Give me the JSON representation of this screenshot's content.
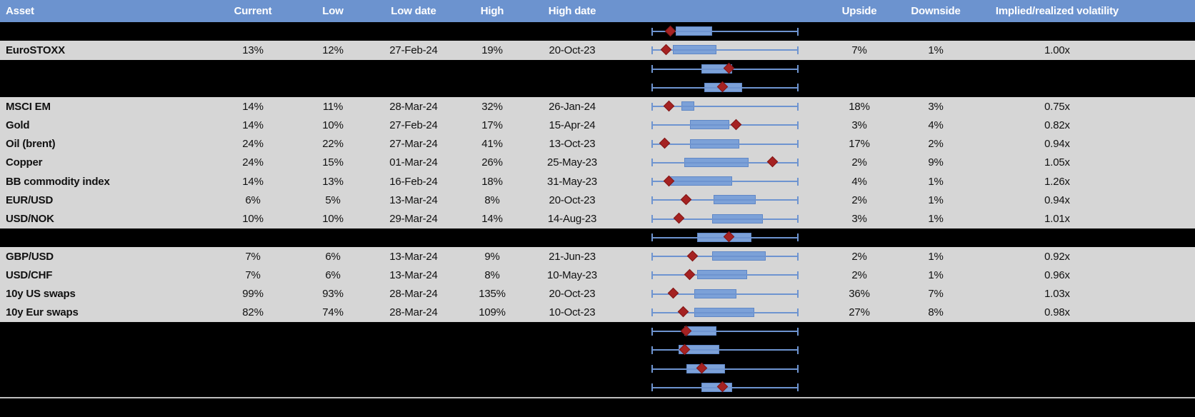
{
  "header": {
    "asset": "Asset",
    "current": "Current",
    "low": "Low",
    "low_date": "Low date",
    "high": "High",
    "high_date": "High date",
    "chart": "",
    "upside": "Upside",
    "downside": "Downside",
    "iv_rv": "Implied/realized volatility"
  },
  "colors": {
    "header_bg": "#6C93CF",
    "row_bg": "#D6D6D6",
    "spacer_bg": "#000000",
    "box_fill": "#7CA1D8",
    "box_edge": "#5F87C6",
    "whisker": "#6E94D0",
    "marker_fill": "#A52222",
    "marker_edge": "#801717",
    "separator": "#BFBFBF",
    "header_text": "#FFFFFF",
    "body_text": "#111111"
  },
  "chart_data": {
    "type": "table",
    "columns": [
      "Asset",
      "Current",
      "Low",
      "Low date",
      "High",
      "High date",
      "1y range box plot",
      "Upside",
      "Downside",
      "Implied/realized volatility"
    ],
    "boxplot_note": "Each row shows a horizontal box-and-whisker spanning the 1y low-high range (normalized 0-1); 'box' = [left,right] of the blue interquartile box, 'marker' = red diamond position of current level.",
    "rows": [
      {
        "spacer": true,
        "box": [
          0.16,
          0.41
        ],
        "marker": 0.13
      },
      {
        "asset": "EuroSTOXX",
        "current": "13%",
        "low": "12%",
        "low_date": "27-Feb-24",
        "high": "19%",
        "high_date": "20-Oct-23",
        "upside": "7%",
        "downside": "1%",
        "iv_rv": "1.00x",
        "box": [
          0.14,
          0.44
        ],
        "marker": 0.1
      },
      {
        "spacer": true,
        "box": [
          0.34,
          0.55
        ],
        "marker": 0.53
      },
      {
        "spacer": true,
        "box": [
          0.36,
          0.62
        ],
        "marker": 0.49
      },
      {
        "asset": "MSCI EM",
        "current": "14%",
        "low": "11%",
        "low_date": "28-Mar-24",
        "high": "32%",
        "high_date": "26-Jan-24",
        "upside": "18%",
        "downside": "3%",
        "iv_rv": "0.75x",
        "box": [
          0.2,
          0.29
        ],
        "marker": 0.12
      },
      {
        "asset": "Gold",
        "current": "14%",
        "low": "10%",
        "low_date": "27-Feb-24",
        "high": "17%",
        "high_date": "15-Apr-24",
        "upside": "3%",
        "downside": "4%",
        "iv_rv": "0.82x",
        "box": [
          0.26,
          0.53
        ],
        "marker": 0.58
      },
      {
        "asset": "Oil (brent)",
        "current": "24%",
        "low": "22%",
        "low_date": "27-Mar-24",
        "high": "41%",
        "high_date": "13-Oct-23",
        "upside": "17%",
        "downside": "2%",
        "iv_rv": "0.94x",
        "box": [
          0.26,
          0.6
        ],
        "marker": 0.09
      },
      {
        "asset": "Copper",
        "current": "24%",
        "low": "15%",
        "low_date": "01-Mar-24",
        "high": "26%",
        "high_date": "25-May-23",
        "upside": "2%",
        "downside": "9%",
        "iv_rv": "1.05x",
        "box": [
          0.22,
          0.66
        ],
        "marker": 0.83
      },
      {
        "asset": "BB commodity index",
        "current": "14%",
        "low": "13%",
        "low_date": "16-Feb-24",
        "high": "18%",
        "high_date": "31-May-23",
        "upside": "4%",
        "downside": "1%",
        "iv_rv": "1.26x",
        "box": [
          0.12,
          0.55
        ],
        "marker": 0.12
      },
      {
        "asset": "EUR/USD",
        "current": "6%",
        "low": "5%",
        "low_date": "13-Mar-24",
        "high": "8%",
        "high_date": "20-Oct-23",
        "upside": "2%",
        "downside": "1%",
        "iv_rv": "0.94x",
        "box": [
          0.42,
          0.71
        ],
        "marker": 0.24
      },
      {
        "asset": "USD/NOK",
        "current": "10%",
        "low": "10%",
        "low_date": "29-Mar-24",
        "high": "14%",
        "high_date": "14-Aug-23",
        "upside": "3%",
        "downside": "1%",
        "iv_rv": "1.01x",
        "box": [
          0.41,
          0.76
        ],
        "marker": 0.19
      },
      {
        "spacer": true,
        "box": [
          0.31,
          0.68
        ],
        "marker": 0.53
      },
      {
        "asset": "GBP/USD",
        "current": "7%",
        "low": "6%",
        "low_date": "13-Mar-24",
        "high": "9%",
        "high_date": "21-Jun-23",
        "upside": "2%",
        "downside": "1%",
        "iv_rv": "0.92x",
        "box": [
          0.41,
          0.78
        ],
        "marker": 0.28
      },
      {
        "asset": "USD/CHF",
        "current": "7%",
        "low": "6%",
        "low_date": "13-Mar-24",
        "high": "8%",
        "high_date": "10-May-23",
        "upside": "2%",
        "downside": "1%",
        "iv_rv": "0.96x",
        "box": [
          0.31,
          0.65
        ],
        "marker": 0.26
      },
      {
        "asset": "10y US swaps",
        "current": "99%",
        "low": "93%",
        "low_date": "28-Mar-24",
        "high": "135%",
        "high_date": "20-Oct-23",
        "upside": "36%",
        "downside": "7%",
        "iv_rv": "1.03x",
        "box": [
          0.29,
          0.58
        ],
        "marker": 0.15
      },
      {
        "asset": "10y Eur swaps",
        "current": "82%",
        "low": "74%",
        "low_date": "28-Mar-24",
        "high": "109%",
        "high_date": "10-Oct-23",
        "upside": "27%",
        "downside": "8%",
        "iv_rv": "0.98x",
        "box": [
          0.29,
          0.7
        ],
        "marker": 0.22
      },
      {
        "spacer": true,
        "box": [
          0.22,
          0.44
        ],
        "marker": 0.24
      },
      {
        "spacer": true,
        "box": [
          0.18,
          0.46
        ],
        "marker": 0.23
      },
      {
        "spacer": true,
        "box": [
          0.235,
          0.5
        ],
        "marker": 0.345
      },
      {
        "spacer": true,
        "box": [
          0.34,
          0.55
        ],
        "marker": 0.49
      }
    ]
  }
}
